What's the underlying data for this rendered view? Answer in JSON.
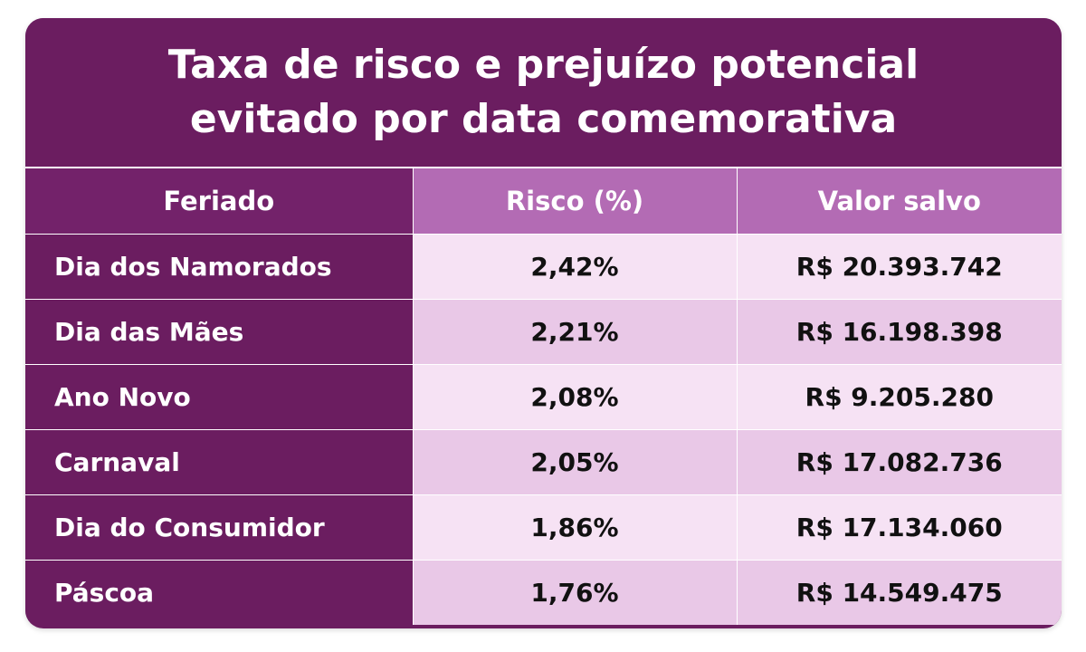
{
  "title": "Taxa de risco e prejuízo potencial evitado por data comemorativa",
  "headers": {
    "holiday": "Feriado",
    "risk": "Risco (%)",
    "saved": "Valor salvo"
  },
  "rows": [
    {
      "holiday": "Dia dos Namorados",
      "risk": "2,42%",
      "saved": "R$ 20.393.742"
    },
    {
      "holiday": "Dia das Mães",
      "risk": "2,21%",
      "saved": "R$ 16.198.398"
    },
    {
      "holiday": "Ano Novo",
      "risk": "2,08%",
      "saved": "R$ 9.205.280"
    },
    {
      "holiday": "Carnaval",
      "risk": "2,05%",
      "saved": "R$ 17.082.736"
    },
    {
      "holiday": "Dia do Consumidor",
      "risk": "1,86%",
      "saved": "R$ 17.134.060"
    },
    {
      "holiday": "Páscoa",
      "risk": "1,76%",
      "saved": "R$ 14.549.475"
    }
  ],
  "colors": {
    "header_dark": "#6b1d60",
    "header_light": "#b36bb4",
    "row_light": "#f6e2f4",
    "row_alt": "#e9c8e7",
    "text_dark": "#111111",
    "text_light": "#ffffff"
  }
}
